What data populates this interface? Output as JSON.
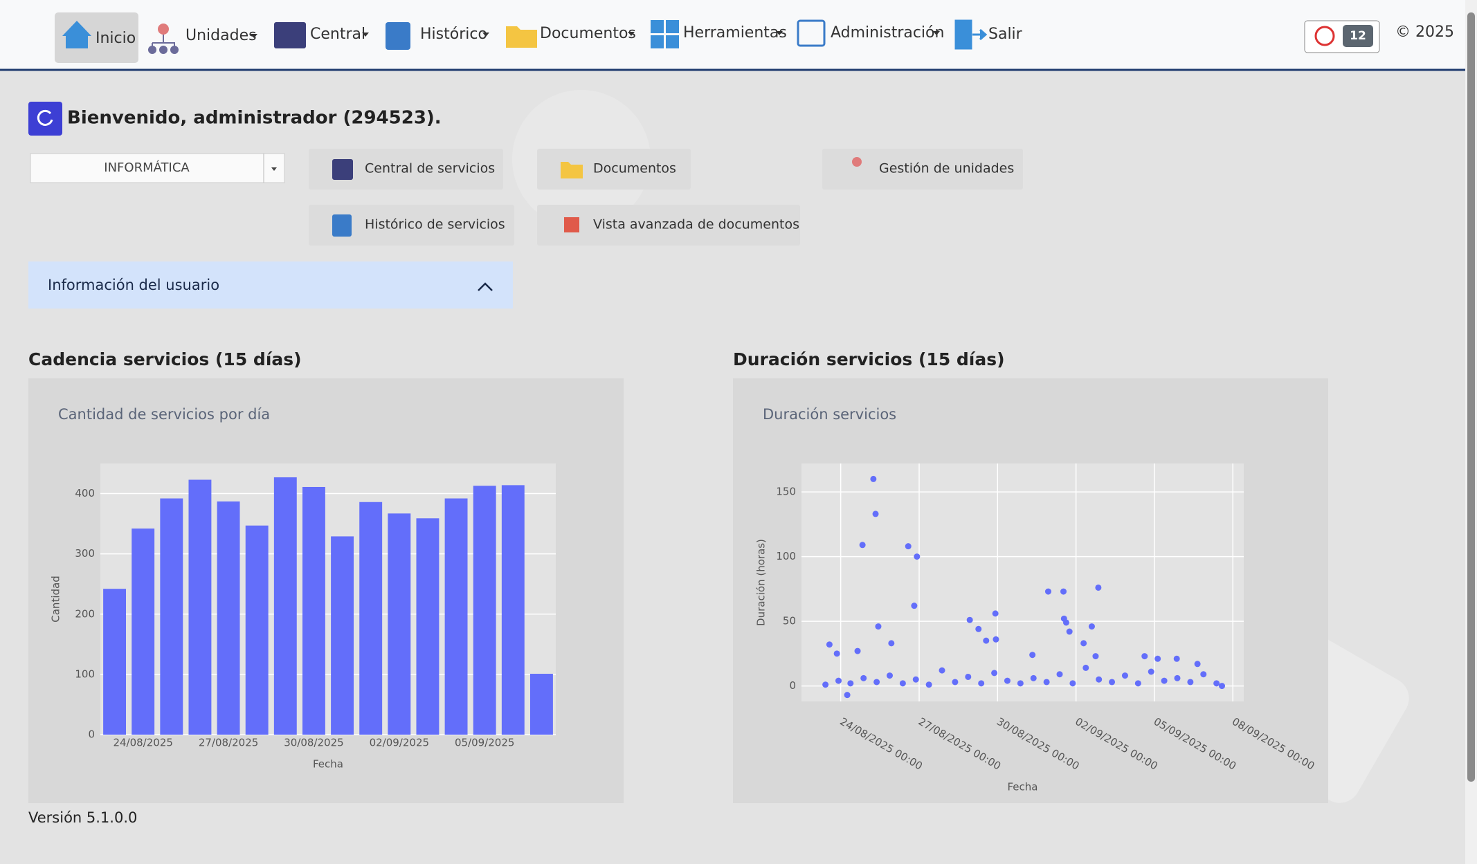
{
  "nav": {
    "items": [
      "Inicio",
      "Unidades",
      "Central",
      "Histórico",
      "Documentos",
      "Herramientas",
      "Administración",
      "Salir"
    ],
    "badge": "12",
    "copyright": "© 2025"
  },
  "welcome": "Bienvenido, administrador (294523).",
  "unit_select": "INFORMÁTICA",
  "shortcuts": [
    "Central de servicios",
    "Documentos",
    "Gestión de unidades",
    "Histórico de servicios",
    "Vista avanzada de documentos"
  ],
  "user_info": "Información del usuario",
  "sections": [
    "Cadencia servicios (15 días)",
    "Duración servicios (15 días)"
  ],
  "version": "Versión 5.1.0.0",
  "chart_data": [
    {
      "type": "bar",
      "title": "Cantidad de servicios por día",
      "x_label": "Fecha",
      "y_label": "Cantidad",
      "categories": [
        null,
        "24/08/2025",
        null,
        null,
        "27/08/2025",
        null,
        null,
        "30/08/2025",
        null,
        null,
        "02/09/2025",
        null,
        null,
        "05/09/2025",
        null,
        null
      ],
      "values": [
        242,
        342,
        392,
        423,
        387,
        347,
        427,
        411,
        329,
        386,
        367,
        359,
        392,
        413,
        414,
        101
      ],
      "color": "#636efa",
      "ylim": [
        0,
        450
      ],
      "yticks": [
        0,
        100,
        200,
        300,
        400
      ],
      "grid": true
    },
    {
      "type": "scatter",
      "title": "Duración servicios",
      "x_label": "Fecha",
      "y_label": "Duración (horas)",
      "x": [
        "23/08/2025 10:00",
        "23/08/2025 22:00",
        "24/08/2025 09:00",
        "24/08/2025 21:00",
        "25/08/2025 09:00",
        "25/08/2025 21:00",
        "26/08/2025 09:00",
        "26/08/2025 21:00",
        "27/08/2025 09:00",
        "27/08/2025 21:00",
        "28/08/2025 09:00",
        "28/08/2025 21:00",
        "29/08/2025 09:00",
        "29/08/2025 21:00",
        "30/08/2025 09:00",
        "30/08/2025 21:00",
        "31/08/2025 09:00",
        "31/08/2025 21:00",
        "01/09/2025 09:00",
        "01/09/2025 21:00",
        "02/09/2025 09:00",
        "02/09/2025 21:00",
        "03/09/2025 09:00",
        "03/09/2025 21:00",
        "04/09/2025 09:00",
        "04/09/2025 21:00",
        "05/09/2025 09:00",
        "05/09/2025 21:00",
        "06/09/2025 09:00",
        "06/09/2025 21:00",
        "07/09/2025 09:00",
        "07/09/2025 14:00",
        "23/08/2025 13:40",
        "23/08/2025 20:30",
        "24/08/2025 06:00",
        "24/08/2025 15:30",
        "24/08/2025 20:00",
        "25/08/2025 06:00",
        "25/08/2025 08:00",
        "25/08/2025 10:30",
        "25/08/2025 22:30",
        "26/08/2025 14:00",
        "26/08/2025 19:30",
        "26/08/2025 22:00",
        "28/08/2025 22:30",
        "29/08/2025 06:30",
        "29/08/2025 13:30",
        "29/08/2025 22:00",
        "29/08/2025 22:30",
        "31/08/2025 08:00",
        "31/08/2025 22:30",
        "01/09/2025 12:30",
        "01/09/2025 13:00",
        "01/09/2025 15:00",
        "01/09/2025 18:00",
        "02/09/2025 07:00",
        "02/09/2025 14:30",
        "02/09/2025 20:30",
        "02/09/2025 18:00",
        "04/09/2025 15:00",
        "05/09/2025 03:00",
        "05/09/2025 20:30",
        "06/09/2025 15:30"
      ],
      "values": [
        1,
        4,
        2,
        6,
        3,
        8,
        2,
        5,
        1,
        12,
        3,
        7,
        2,
        10,
        4,
        2,
        6,
        3,
        9,
        2,
        14,
        5,
        3,
        8,
        2,
        11,
        4,
        6,
        3,
        9,
        2,
        0,
        32,
        25,
        -7,
        27,
        109,
        160,
        133,
        46,
        33,
        108,
        62,
        100,
        51,
        44,
        35,
        56,
        36,
        24,
        73,
        73,
        52,
        49,
        42,
        33,
        46,
        76,
        23,
        23,
        21,
        21,
        17
      ],
      "color": "#636efa",
      "xlim": [
        "22/08/2025 12:00",
        "08/09/2025 10:00"
      ],
      "ylim": [
        -12,
        172
      ],
      "xticks": [
        "24/08/2025 00:00",
        "27/08/2025 00:00",
        "30/08/2025 00:00",
        "02/09/2025 00:00",
        "05/09/2025 00:00",
        "08/09/2025 00:00"
      ],
      "yticks": [
        0,
        50,
        100,
        150
      ],
      "grid": true
    }
  ]
}
